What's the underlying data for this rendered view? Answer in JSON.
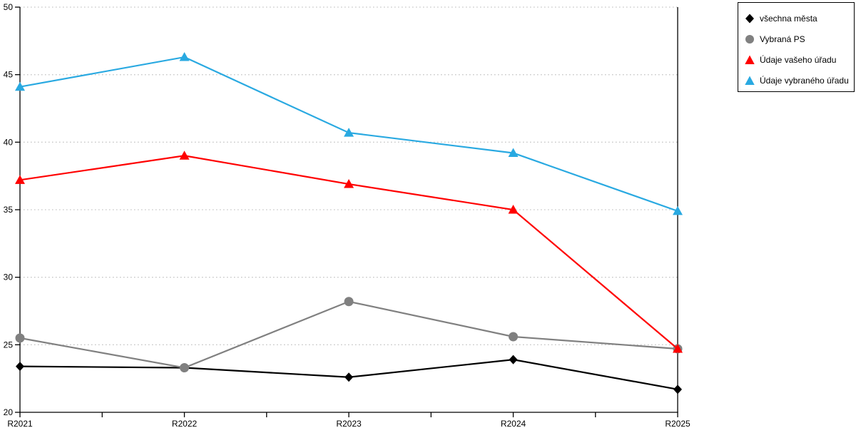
{
  "chart_data": {
    "type": "line",
    "title": "",
    "xlabel": "",
    "ylabel": "",
    "categories": [
      "R2021",
      "R2022",
      "R2023",
      "R2024",
      "R2025"
    ],
    "series": [
      {
        "name": "všechna města",
        "marker": "diamond",
        "color": "#000000",
        "values": [
          23.4,
          23.3,
          22.6,
          23.9,
          21.7
        ]
      },
      {
        "name": "Vybraná PS",
        "marker": "circle",
        "color": "#808080",
        "values": [
          25.5,
          23.3,
          28.2,
          25.6,
          24.7
        ]
      },
      {
        "name": "Údaje vašeho úřadu",
        "marker": "triangle",
        "color": "#ff0000",
        "values": [
          37.2,
          39.0,
          36.9,
          35.0,
          24.7
        ]
      },
      {
        "name": "Údaje vybraného úřadu",
        "marker": "triangle",
        "color": "#29a9e1",
        "values": [
          44.1,
          46.3,
          40.7,
          39.2,
          34.9
        ]
      }
    ],
    "ylim": [
      20,
      50
    ],
    "yticks": [
      20,
      25,
      30,
      35,
      40,
      45,
      50
    ],
    "grid": "horizontal-dotted",
    "legend_position": "top-right",
    "colors": {
      "gridline": "#c4c4c4",
      "axis": "#000000",
      "background": "#ffffff",
      "text": "#000000"
    }
  }
}
